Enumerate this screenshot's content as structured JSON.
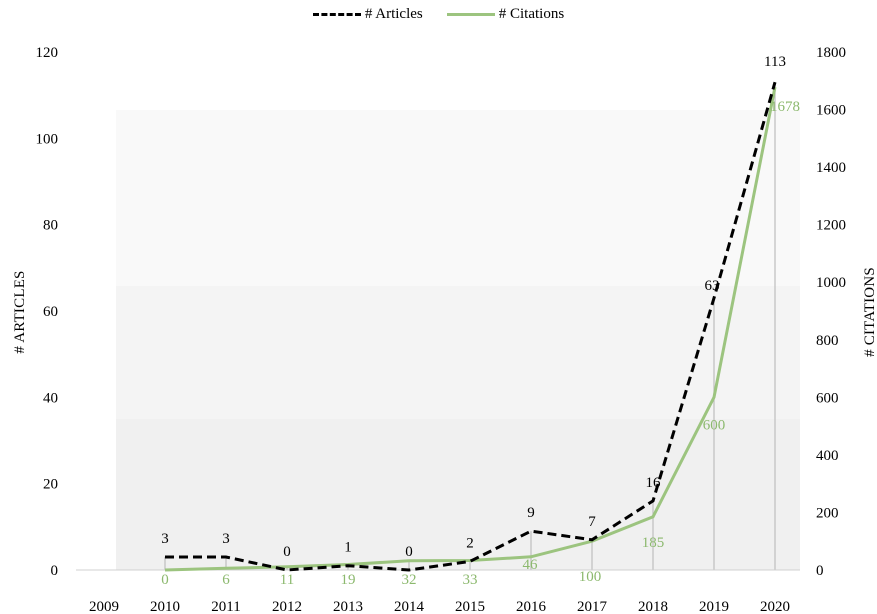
{
  "chart_data": {
    "type": "line",
    "categories": [
      "2009",
      "2010",
      "2011",
      "2012",
      "2013",
      "2014",
      "2015",
      "2016",
      "2017",
      "2018",
      "2019",
      "2020"
    ],
    "series": [
      {
        "name": "# Articles",
        "axis": "left",
        "style": "dashed",
        "color": "#000000",
        "values": [
          null,
          3,
          3,
          0,
          1,
          0,
          2,
          9,
          7,
          16,
          63,
          113
        ],
        "labels": [
          "",
          "3",
          "3",
          "0",
          "1",
          "0",
          "2",
          "9",
          "7",
          "16",
          "63",
          "113"
        ]
      },
      {
        "name": "# Citations",
        "axis": "right",
        "style": "solid",
        "color": "#9cc47f",
        "values": [
          null,
          0,
          6,
          11,
          19,
          32,
          33,
          46,
          100,
          185,
          600,
          1678
        ],
        "labels": [
          "",
          "0",
          "6",
          "11",
          "19",
          "32",
          "33",
          "46",
          "100",
          "185",
          "600",
          "1678"
        ]
      }
    ],
    "ylabel": "# ARTICLES",
    "y2label": "# CITATIONS",
    "ylim": [
      0,
      120
    ],
    "y2lim": [
      0,
      1800
    ],
    "yticks": [
      "0",
      "20",
      "40",
      "60",
      "80",
      "100",
      "120"
    ],
    "y2ticks": [
      "0",
      "200",
      "400",
      "600",
      "800",
      "1000",
      "1200",
      "1400",
      "1600",
      "1800"
    ],
    "legend_position": "top-center",
    "grid": false
  }
}
